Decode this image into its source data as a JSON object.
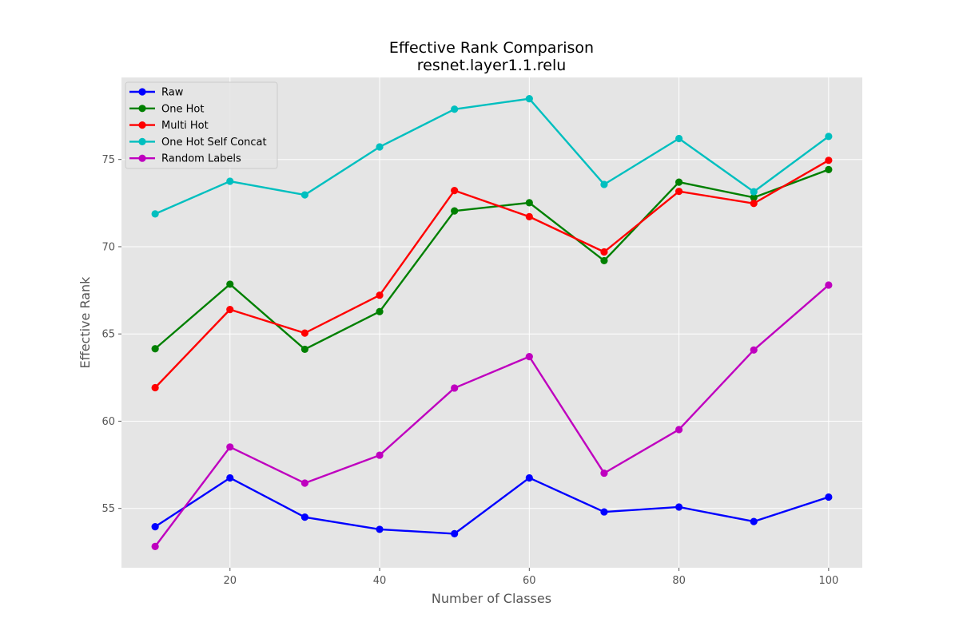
{
  "chart_data": {
    "type": "line",
    "title": "Effective Rank Comparison",
    "subtitle": "resnet.layer1.1.relu",
    "xlabel": "Number of Classes",
    "ylabel": "Effective Rank",
    "xlim": [
      5.5,
      104.5
    ],
    "ylim": [
      51.6,
      79.7
    ],
    "xticks": [
      20,
      40,
      60,
      80,
      100
    ],
    "yticks": [
      55,
      60,
      65,
      70,
      75
    ],
    "grid": true,
    "legend_position": "upper-left",
    "background": "#e5e5e5",
    "x": [
      10,
      20,
      30,
      40,
      50,
      60,
      70,
      80,
      90,
      100
    ],
    "series": [
      {
        "name": "Raw",
        "color": "#0000ff",
        "values": [
          53.95,
          56.75,
          54.5,
          53.8,
          53.55,
          56.75,
          54.8,
          55.08,
          54.25,
          55.65
        ]
      },
      {
        "name": "One Hot",
        "color": "#008000",
        "values": [
          64.15,
          67.85,
          64.12,
          66.28,
          72.05,
          72.52,
          69.2,
          73.7,
          72.82,
          74.42
        ]
      },
      {
        "name": "Multi Hot",
        "color": "#ff0000",
        "values": [
          61.92,
          66.4,
          65.05,
          67.22,
          73.22,
          71.72,
          69.7,
          73.17,
          72.48,
          74.95
        ]
      },
      {
        "name": "One Hot Self Concat",
        "color": "#00bfbf",
        "values": [
          71.88,
          73.75,
          72.97,
          75.72,
          77.88,
          78.48,
          73.57,
          76.2,
          73.15,
          76.32
        ]
      },
      {
        "name": "Random Labels",
        "color": "#bf00bf",
        "values": [
          52.82,
          58.52,
          56.45,
          58.05,
          61.9,
          63.7,
          57.02,
          59.52,
          64.08,
          67.8
        ]
      }
    ]
  }
}
